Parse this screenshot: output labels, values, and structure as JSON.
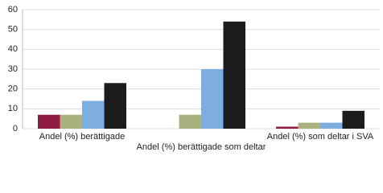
{
  "chart_data": {
    "type": "bar",
    "categories": [
      "Andel (%) berättigade",
      "Andel (%) berättigade som deltar",
      "Andel (%) som deltar i SVA"
    ],
    "series": [
      {
        "color": "#8e1c40",
        "values": [
          7,
          null,
          1
        ]
      },
      {
        "color": "#a9b17f",
        "values": [
          7,
          7,
          3
        ]
      },
      {
        "color": "#7eaedf",
        "values": [
          14,
          30,
          3
        ]
      },
      {
        "color": "#1c1c1c",
        "values": [
          23,
          54,
          9
        ]
      }
    ],
    "ylim": [
      0,
      60
    ],
    "yticks": [
      0,
      10,
      20,
      30,
      40,
      50,
      60
    ],
    "grid": true
  }
}
